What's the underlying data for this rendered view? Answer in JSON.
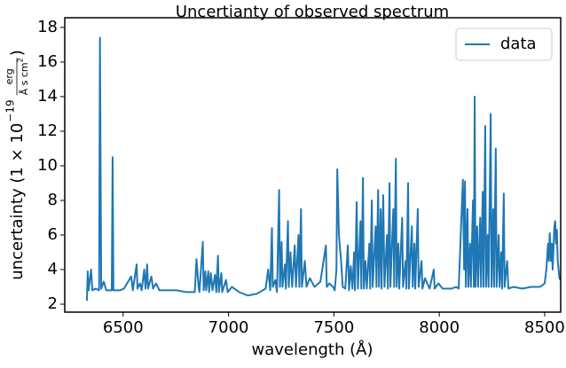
{
  "chart_data": {
    "type": "line",
    "title": "Uncertianty of observed spectrum",
    "xlabel": "wavelength (Å)",
    "ylabel": [
      "uncertainty (1 × 10",
      "−19",
      "erg",
      "Å s cm",
      "2",
      ")"
    ],
    "xlim": [
      6223,
      8576
    ],
    "ylim": [
      1.54,
      18.56
    ],
    "xticks": [
      6500,
      7000,
      7500,
      8000,
      8500
    ],
    "yticks": [
      2,
      4,
      6,
      8,
      10,
      12,
      14,
      16,
      18
    ],
    "grid": false,
    "legend": "upper right",
    "x": [
      6328,
      6332,
      6336,
      6348,
      6354,
      6370,
      6386,
      6390,
      6396,
      6408,
      6420,
      6446,
      6450,
      6454,
      6484,
      6504,
      6538,
      6546,
      6564,
      6568,
      6580,
      6588,
      6600,
      6606,
      6614,
      6618,
      6634,
      6642,
      6656,
      6672,
      6714,
      6756,
      6798,
      6840,
      6848,
      6858,
      6862,
      6878,
      6882,
      6890,
      6894,
      6904,
      6908,
      6916,
      6924,
      6936,
      6942,
      6950,
      6954,
      6966,
      6970,
      6988,
      6996,
      7016,
      7050,
      7092,
      7134,
      7176,
      7188,
      7198,
      7206,
      7210,
      7222,
      7230,
      7240,
      7244,
      7252,
      7256,
      7268,
      7272,
      7282,
      7286,
      7294,
      7302,
      7314,
      7320,
      7332,
      7336,
      7344,
      7348,
      7362,
      7370,
      7386,
      7408,
      7436,
      7462,
      7466,
      7478,
      7496,
      7504,
      7512,
      7516,
      7524,
      7534,
      7542,
      7554,
      7566,
      7572,
      7580,
      7588,
      7596,
      7600,
      7608,
      7614,
      7626,
      7630,
      7638,
      7642,
      7650,
      7656,
      7668,
      7672,
      7680,
      7684,
      7698,
      7702,
      7710,
      7714,
      7722,
      7726,
      7734,
      7740,
      7752,
      7756,
      7764,
      7768,
      7782,
      7786,
      7794,
      7798,
      7806,
      7810,
      7824,
      7828,
      7840,
      7844,
      7852,
      7856,
      7870,
      7874,
      7882,
      7886,
      7898,
      7902,
      7916,
      7920,
      7932,
      7954,
      7974,
      7978,
      7996,
      8016,
      8058,
      8080,
      8092,
      8112,
      8118,
      8122,
      8126,
      8134,
      8138,
      8146,
      8150,
      8160,
      8164,
      8168,
      8172,
      8180,
      8184,
      8194,
      8198,
      8206,
      8210,
      8218,
      8222,
      8230,
      8234,
      8244,
      8248,
      8256,
      8260,
      8268,
      8272,
      8282,
      8286,
      8294,
      8298,
      8306,
      8310,
      8322,
      8328,
      8352,
      8394,
      8436,
      8478,
      8500,
      8508,
      8516,
      8520,
      8524,
      8530,
      8534,
      8538,
      8546,
      8550,
      8554,
      8558,
      8562,
      8570,
      8575
    ],
    "series": [
      {
        "name": "data",
        "color": "#1f77b4",
        "values": [
          2.2,
          3.9,
          2.8,
          4.0,
          2.8,
          2.9,
          2.8,
          17.4,
          2.9,
          3.3,
          2.8,
          2.8,
          10.5,
          2.8,
          2.8,
          2.9,
          3.6,
          2.8,
          4.3,
          2.9,
          3.2,
          2.8,
          4.0,
          2.9,
          4.3,
          2.9,
          3.6,
          2.9,
          3.2,
          2.8,
          2.8,
          2.8,
          2.7,
          2.7,
          4.6,
          3.0,
          2.7,
          5.6,
          2.8,
          3.9,
          2.8,
          3.9,
          2.7,
          3.8,
          2.8,
          3.7,
          2.7,
          4.8,
          2.7,
          3.8,
          2.7,
          3.4,
          2.7,
          3.0,
          2.7,
          2.5,
          2.6,
          2.9,
          4.0,
          2.8,
          6.4,
          3.0,
          3.4,
          2.7,
          8.6,
          3.0,
          5.6,
          3.0,
          4.3,
          2.9,
          6.8,
          3.0,
          5.0,
          3.0,
          5.4,
          3.0,
          6.0,
          3.0,
          7.5,
          3.0,
          4.5,
          3.0,
          3.5,
          3.0,
          3.3,
          5.4,
          3.0,
          3.2,
          3.0,
          2.8,
          4.0,
          9.8,
          6.0,
          4.5,
          3.0,
          2.9,
          5.4,
          2.8,
          4.2,
          2.9,
          5.0,
          2.8,
          7.9,
          2.9,
          6.8,
          2.9,
          9.3,
          2.9,
          4.5,
          2.9,
          5.5,
          2.9,
          8.0,
          3.0,
          6.5,
          3.0,
          8.6,
          3.0,
          7.5,
          2.9,
          8.3,
          3.0,
          6.0,
          2.9,
          9.0,
          3.0,
          7.5,
          3.0,
          10.4,
          3.0,
          5.5,
          2.9,
          7.0,
          3.0,
          4.5,
          2.9,
          9.0,
          2.9,
          6.5,
          3.0,
          5.5,
          2.9,
          7.5,
          3.0,
          4.5,
          2.9,
          3.5,
          2.9,
          4.0,
          2.9,
          3.2,
          2.9,
          2.9,
          3.0,
          2.9,
          9.2,
          4.0,
          9.1,
          3.0,
          7.5,
          3.0,
          5.5,
          3.0,
          8.0,
          3.0,
          14.0,
          3.0,
          6.5,
          3.0,
          7.0,
          3.0,
          8.5,
          3.0,
          12.3,
          3.0,
          6.0,
          3.0,
          13.0,
          3.0,
          7.5,
          3.0,
          11.0,
          3.0,
          6.0,
          3.0,
          5.0,
          2.9,
          8.4,
          3.0,
          4.5,
          2.9,
          3.0,
          2.9,
          3.0,
          3.0,
          3.2,
          4.0,
          5.5,
          4.5,
          6.1,
          4.5,
          5.5,
          4.0,
          6.5,
          6.8,
          5.5,
          6.3,
          4.5,
          3.5,
          3.4
        ]
      }
    ]
  }
}
